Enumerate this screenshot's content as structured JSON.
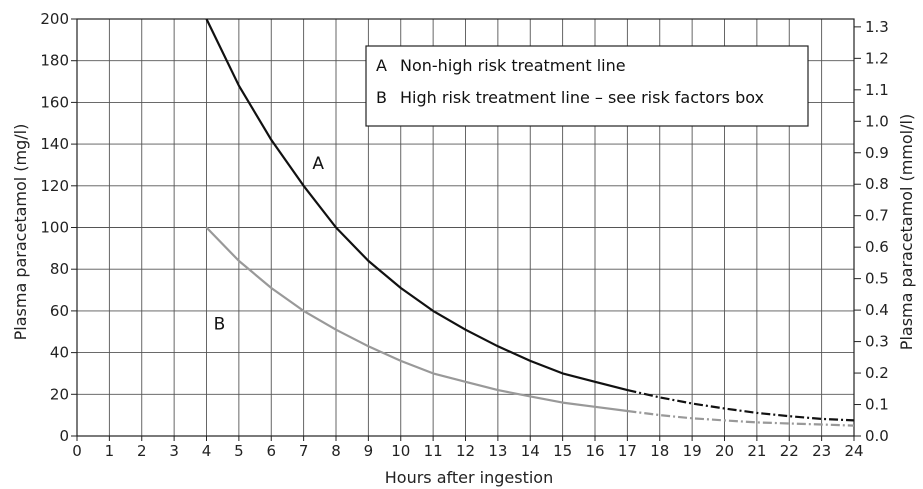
{
  "chart_data": {
    "type": "line",
    "xlabel": "Hours after ingestion",
    "ylabel_left": "Plasma paracetamol (mg/l)",
    "ylabel_right": "Plasma paracetamol (mmol/l)",
    "xlim": [
      0,
      24
    ],
    "ylim_left": [
      0,
      200
    ],
    "ylim_right": [
      0,
      1.325
    ],
    "x_ticks": [
      "0",
      "1",
      "2",
      "3",
      "4",
      "5",
      "6",
      "7",
      "8",
      "9",
      "10",
      "11",
      "12",
      "13",
      "14",
      "15",
      "16",
      "17",
      "18",
      "19",
      "20",
      "21",
      "22",
      "23",
      "24"
    ],
    "y_ticks_left": [
      "0",
      "20",
      "40",
      "60",
      "80",
      "100",
      "120",
      "140",
      "160",
      "180",
      "200"
    ],
    "y_ticks_right": [
      "0.0",
      "0.1",
      "0.2",
      "0.3",
      "0.4",
      "0.5",
      "0.6",
      "0.7",
      "0.8",
      "0.9",
      "1.0",
      "1.1",
      "1.2",
      "1.3"
    ],
    "grid": true,
    "legend_position": "top-right",
    "legend": [
      {
        "key": "A",
        "label": "Non-high risk treatment line"
      },
      {
        "key": "B",
        "label": "High risk treatment line – see risk factors box"
      }
    ],
    "series": [
      {
        "name": "A",
        "color": "#111111",
        "solid_until_x": 17,
        "x": [
          4,
          5,
          6,
          7,
          8,
          9,
          10,
          11,
          12,
          13,
          14,
          15,
          16,
          17,
          18,
          19,
          20,
          21,
          22,
          23,
          24
        ],
        "values": [
          200,
          168,
          142,
          120,
          100,
          84,
          71,
          60,
          51,
          43,
          36,
          30,
          26,
          22,
          18.5,
          15.6,
          13.2,
          11.1,
          9.5,
          8.2,
          7.5
        ]
      },
      {
        "name": "B",
        "color": "#999999",
        "solid_until_x": 17,
        "x": [
          4,
          5,
          6,
          7,
          8,
          9,
          10,
          11,
          12,
          13,
          14,
          15,
          16,
          17,
          18,
          19,
          20,
          21,
          22,
          23,
          24
        ],
        "values": [
          100,
          84,
          71,
          60,
          51,
          43,
          36,
          30,
          26,
          22,
          19,
          16,
          14,
          12,
          10,
          8.5,
          7.5,
          6.5,
          6,
          5.5,
          5
        ]
      }
    ]
  }
}
